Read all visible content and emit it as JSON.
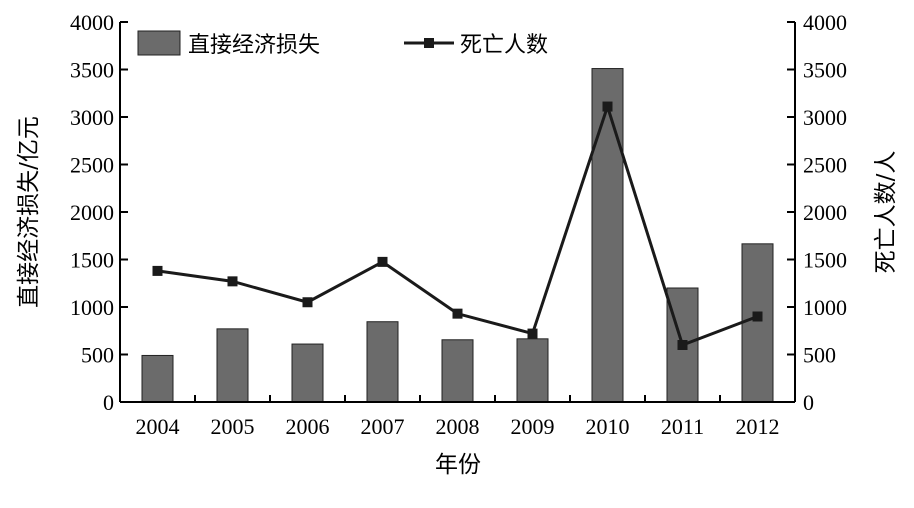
{
  "chart_data": {
    "type": "bar",
    "categories": [
      "2004",
      "2005",
      "2006",
      "2007",
      "2008",
      "2009",
      "2010",
      "2011",
      "2012"
    ],
    "series": [
      {
        "name": "直接经济损失",
        "type": "bar",
        "axis": "left",
        "color": "#6b6b6b",
        "values": [
          490,
          770,
          610,
          845,
          655,
          665,
          3510,
          1200,
          1665
        ]
      },
      {
        "name": "死亡人数",
        "type": "line",
        "axis": "right",
        "color": "#1a1a1a",
        "values": [
          1380,
          1270,
          1050,
          1475,
          930,
          720,
          3110,
          600,
          900
        ]
      }
    ],
    "xlabel": "年份",
    "ylabel": "直接经济损失/亿元",
    "y2label": "死亡人数/人",
    "ylim": [
      0,
      4000
    ],
    "y2lim": [
      0,
      4000
    ],
    "yticks": [
      "0",
      "500",
      "1000",
      "1500",
      "2000",
      "2500",
      "3000",
      "3500",
      "4000"
    ],
    "y2ticks": [
      "0",
      "500",
      "1000",
      "1500",
      "2000",
      "2500",
      "3000",
      "3500",
      "4000"
    ],
    "grid": false,
    "legend_position": "top-left"
  }
}
